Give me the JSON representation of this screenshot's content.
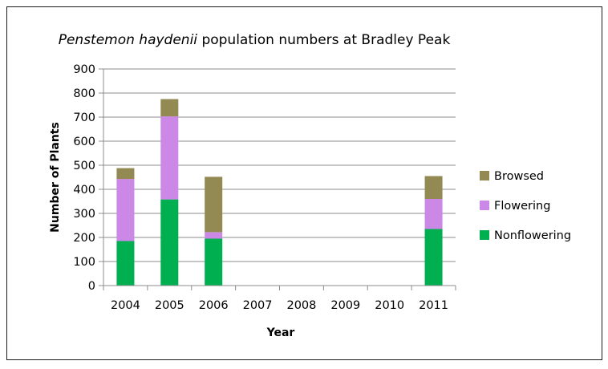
{
  "chart_data": {
    "type": "bar",
    "stacked": true,
    "title_italic": "Penstemon haydenii",
    "title_rest": " population numbers at Bradley Peak",
    "xlabel": "Year",
    "ylabel": "Number of Plants",
    "ylim": [
      0,
      900
    ],
    "yticks": [
      "0",
      "100",
      "200",
      "300",
      "400",
      "500",
      "600",
      "700",
      "800",
      "900"
    ],
    "grid": true,
    "legend_position": "right",
    "categories": [
      "2004",
      "2005",
      "2006",
      "2007",
      "2008",
      "2009",
      "2010",
      "2011"
    ],
    "series": [
      {
        "name": "Nonflowering",
        "color": "#00b050",
        "values": [
          185,
          358,
          195,
          0,
          0,
          0,
          0,
          235
        ]
      },
      {
        "name": "Flowering",
        "color": "#cc88e6",
        "values": [
          258,
          345,
          27,
          0,
          0,
          0,
          0,
          125
        ]
      },
      {
        "name": "Browsed",
        "color": "#938953",
        "values": [
          45,
          72,
          230,
          0,
          0,
          0,
          0,
          95
        ]
      }
    ]
  }
}
